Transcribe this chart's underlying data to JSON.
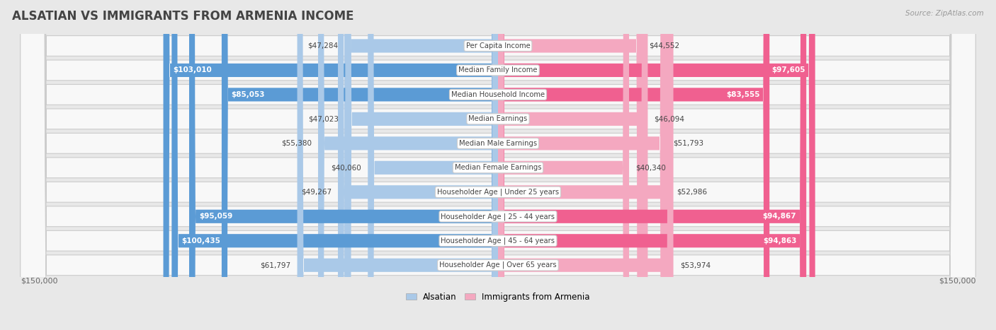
{
  "title": "ALSATIAN VS IMMIGRANTS FROM ARMENIA INCOME",
  "source": "Source: ZipAtlas.com",
  "categories": [
    "Per Capita Income",
    "Median Family Income",
    "Median Household Income",
    "Median Earnings",
    "Median Male Earnings",
    "Median Female Earnings",
    "Householder Age | Under 25 years",
    "Householder Age | 25 - 44 years",
    "Householder Age | 45 - 64 years",
    "Householder Age | Over 65 years"
  ],
  "alsatian_values": [
    47284,
    103010,
    85053,
    47023,
    55380,
    40060,
    49267,
    95059,
    100435,
    61797
  ],
  "armenia_values": [
    44552,
    97605,
    83555,
    46094,
    51793,
    40340,
    52986,
    94867,
    94863,
    53974
  ],
  "alsatian_color_light": "#aac9e8",
  "alsatian_color_dark": "#5b9bd5",
  "armenia_color_light": "#f4a8c0",
  "armenia_color_dark": "#f06090",
  "max_value": 150000,
  "alsatian_label": "Alsatian",
  "armenia_label": "Immigrants from Armenia",
  "label_dark_threshold": 80000,
  "background_color": "#e8e8e8",
  "row_bg_color": "#f8f8f8",
  "title_color": "#444444",
  "source_color": "#999999",
  "axis_label_color": "#666666",
  "value_label_dark_color": "#444444",
  "value_label_white_color": "#ffffff",
  "cat_label_color": "#444444"
}
